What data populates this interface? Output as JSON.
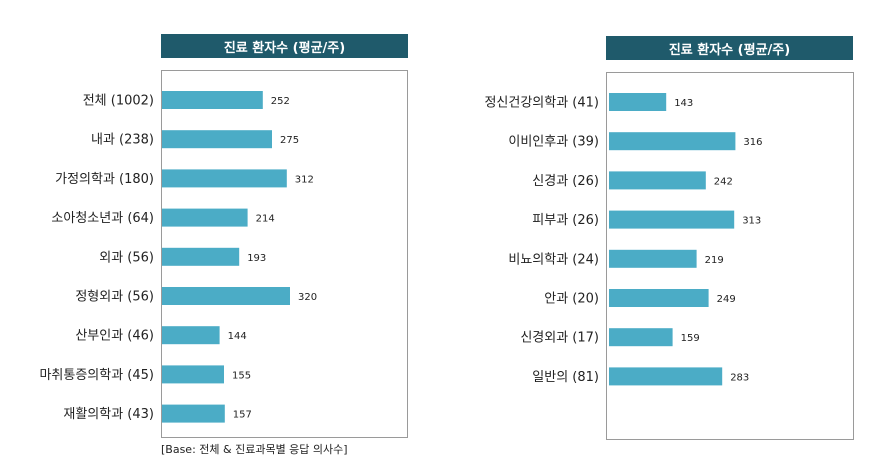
{
  "footnote": "[Base: 전체 & 진료과목별 응답 의사수]",
  "colors": {
    "title_bg": "#1f5a6b",
    "bar": "#4bacc6"
  },
  "chart_data": [
    {
      "type": "bar",
      "orientation": "horizontal",
      "title": "진료 환자수 (평균/주)",
      "categories": [
        "전체 (1002)",
        "내과 (238)",
        "가정의학과 (180)",
        "소아청소년과 (64)",
        "외과 (56)",
        "정형외과 (56)",
        "산부인과 (46)",
        "마취통증의학과 (45)",
        "재활의학과 (43)"
      ],
      "values": [
        252,
        275,
        312,
        214,
        193,
        320,
        144,
        155,
        157
      ],
      "xlim": [
        0,
        1000
      ],
      "grid": false,
      "legend": "none"
    },
    {
      "type": "bar",
      "orientation": "horizontal",
      "title": "진료 환자수 (평균/주)",
      "categories": [
        "정신건강의학과 (41)",
        "이비인후과 (39)",
        "신경과 (26)",
        "피부과 (26)",
        "비뇨의학과 (24)",
        "안과 (20)",
        "신경외과 (17)",
        "일반의 (81)"
      ],
      "values": [
        143,
        316,
        242,
        313,
        219,
        249,
        159,
        283
      ],
      "xlim": [
        0,
        1000
      ],
      "grid": false,
      "legend": "none"
    }
  ]
}
